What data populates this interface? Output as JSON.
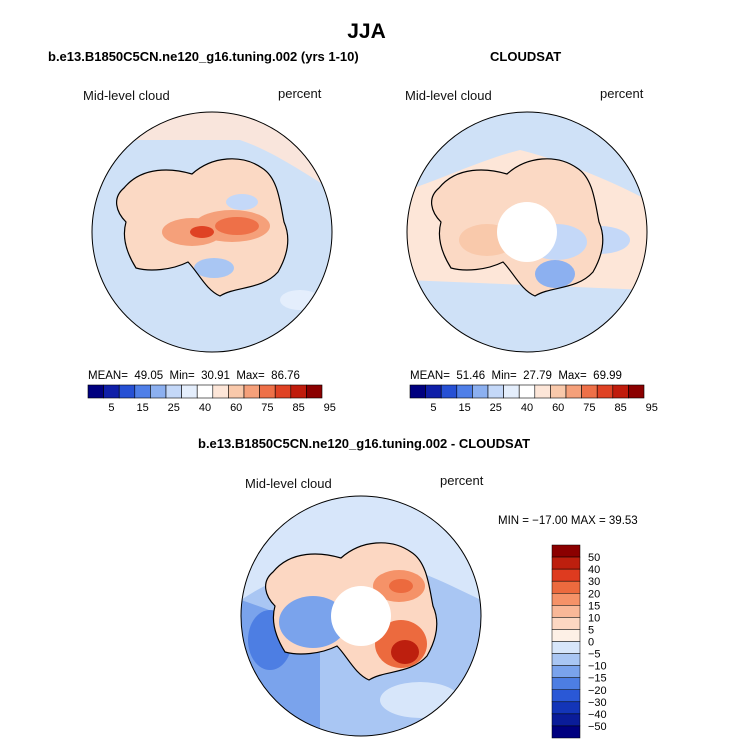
{
  "main_title": "JJA",
  "panels": [
    {
      "title": "b.e13.B1850C5CN.ne120_g16.tuning.002 (yrs 1-10)",
      "variable": "Mid-level cloud",
      "units": "percent",
      "stats": {
        "mean_label": "MEAN=",
        "mean": "49.05",
        "min_label": "Min=",
        "min": "30.91",
        "max_label": "Max=",
        "max": "86.76"
      },
      "colorbar_ticks": [
        "5",
        "15",
        "25",
        "40",
        "60",
        "75",
        "85",
        "95"
      ]
    },
    {
      "title": "CLOUDSAT",
      "variable": "Mid-level cloud",
      "units": "percent",
      "stats": {
        "mean_label": "MEAN=",
        "mean": "51.46",
        "min_label": "Min=",
        "min": "27.79",
        "max_label": "Max=",
        "max": "69.99"
      },
      "colorbar_ticks": [
        "5",
        "15",
        "25",
        "40",
        "60",
        "75",
        "85",
        "95"
      ]
    },
    {
      "title": "b.e13.B1850C5CN.ne120_g16.tuning.002 - CLOUDSAT",
      "variable": "Mid-level cloud",
      "units": "percent",
      "stats_text": "MIN = −17.00 MAX =  39.53",
      "colorbar_ticks": [
        "50",
        "40",
        "30",
        "20",
        "15",
        "10",
        "5",
        "0",
        "−5",
        "−10",
        "−15",
        "−20",
        "−30",
        "−40",
        "−50"
      ]
    }
  ],
  "colors": {
    "abs_scale": [
      "#00007f",
      "#0f1fa8",
      "#2650d4",
      "#4f7fe8",
      "#8cb0f0",
      "#c4d8f8",
      "#e4eefc",
      "#ffffff",
      "#fde6d8",
      "#f9c9ab",
      "#f5a07a",
      "#ee7048",
      "#df4224",
      "#c01c0c",
      "#8b0000"
    ],
    "diff_scale": [
      "#8b0000",
      "#bd1f0e",
      "#de3b1f",
      "#ec6a3e",
      "#f59268",
      "#f9b898",
      "#fcd7c2",
      "#fdf0e6",
      "#d7e6fa",
      "#a9c6f3",
      "#7aa3ec",
      "#4d7ee3",
      "#2a58d6",
      "#1335b8",
      "#0a1c99",
      "#00007f"
    ],
    "ocean_light": "#cfe1f7",
    "land_warm": "#fbd9c4"
  }
}
